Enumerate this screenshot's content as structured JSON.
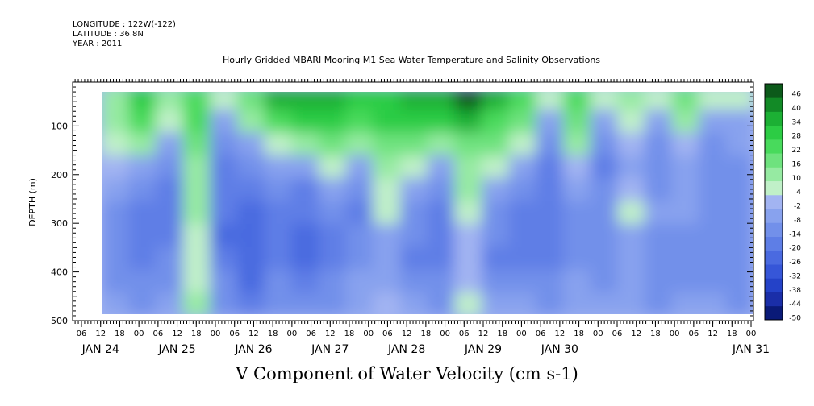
{
  "header": {
    "longitude": "LONGITUDE : 122W(-122)",
    "latitude": "LATITUDE : 36.8N",
    "year": "YEAR : 2011"
  },
  "chart_data": {
    "type": "heatmap",
    "title": "Hourly Gridded MBARI Mooring M1 Sea Water Temperature and Salinity Observations",
    "bottom_label": "V Component of Water Velocity (cm s-1)",
    "xlabel": "",
    "ylabel": "DEPTH (m)",
    "y_ticks": [
      100,
      200,
      300,
      400,
      500
    ],
    "ylim": [
      500,
      10
    ],
    "data_depth_range": [
      20,
      490
    ],
    "x_hour_ticks": [
      "06",
      "12",
      "18",
      "00",
      "06",
      "12",
      "18",
      "00",
      "06",
      "12",
      "18",
      "00",
      "06",
      "12",
      "18",
      "00",
      "06",
      "12",
      "18",
      "00",
      "06",
      "12",
      "18",
      "00",
      "06",
      "12",
      "18",
      "00",
      "06",
      "12",
      "18",
      "00",
      "06",
      "12",
      "18",
      "00"
    ],
    "x_day_labels": [
      "JAN 24",
      "JAN 25",
      "JAN 26",
      "JAN 27",
      "JAN 28",
      "JAN 29",
      "JAN 30",
      "JAN 31"
    ],
    "colorbar": {
      "levels": [
        -50,
        -44,
        -38,
        -32,
        -26,
        -20,
        -14,
        -8,
        -2,
        4,
        10,
        16,
        22,
        28,
        34,
        40,
        46
      ],
      "tick_labels": [
        "46",
        "40",
        "34",
        "28",
        "22",
        "16",
        "10",
        "4",
        "-2",
        "-8",
        "-14",
        "-20",
        "-26",
        "-32",
        "-38",
        "-44",
        "-50"
      ],
      "colors": [
        "#0a1a78",
        "#1a2ea8",
        "#2442c8",
        "#3656d8",
        "#4a6ae0",
        "#5e7ee6",
        "#7290ea",
        "#88a2ee",
        "#a2b4f2",
        "#c0f0c8",
        "#96eaa2",
        "#6ee27e",
        "#48da5c",
        "#2ccc44",
        "#1cb034",
        "#128a26",
        "#0c5a1a"
      ]
    },
    "field": {
      "rows": 10,
      "cols": 24,
      "v_values": [
        [
          12,
          28,
          14,
          26,
          4,
          18,
          34,
          38,
          34,
          30,
          32,
          34,
          36,
          46,
          34,
          22,
          6,
          26,
          4,
          12,
          6,
          20,
          6,
          4
        ],
        [
          10,
          22,
          6,
          24,
          -6,
          10,
          22,
          28,
          30,
          24,
          28,
          30,
          28,
          34,
          26,
          16,
          -6,
          20,
          -8,
          6,
          -8,
          14,
          -6,
          -4
        ],
        [
          6,
          10,
          -8,
          18,
          -14,
          -4,
          8,
          12,
          18,
          10,
          16,
          20,
          14,
          20,
          16,
          8,
          -12,
          10,
          -14,
          -2,
          -14,
          -2,
          -12,
          -8
        ],
        [
          -2,
          -8,
          -12,
          14,
          -16,
          -12,
          -4,
          -8,
          6,
          -8,
          10,
          8,
          -4,
          14,
          6,
          -6,
          -16,
          -2,
          -16,
          -4,
          -12,
          -4,
          -14,
          -10
        ],
        [
          -8,
          -14,
          -16,
          12,
          -18,
          -18,
          -12,
          -16,
          -4,
          -14,
          8,
          -4,
          -12,
          10,
          -6,
          -14,
          -18,
          -8,
          -14,
          -2,
          -10,
          -6,
          -14,
          -10
        ],
        [
          -12,
          -16,
          -18,
          10,
          -20,
          -22,
          -16,
          -20,
          -12,
          -16,
          4,
          -10,
          -16,
          6,
          -12,
          -16,
          -20,
          -12,
          -12,
          4,
          -8,
          -8,
          -14,
          -12
        ],
        [
          -14,
          -18,
          -16,
          8,
          -22,
          -24,
          -16,
          -22,
          -16,
          -14,
          -4,
          -14,
          -18,
          2,
          -14,
          -18,
          -20,
          -14,
          -10,
          -4,
          -12,
          -10,
          -12,
          -14
        ],
        [
          -12,
          -16,
          -14,
          6,
          -20,
          -26,
          -18,
          -24,
          -18,
          -12,
          -8,
          -16,
          -18,
          -2,
          -16,
          -16,
          -18,
          -12,
          -12,
          -8,
          -14,
          -12,
          -12,
          -14
        ],
        [
          -10,
          -14,
          -10,
          8,
          -14,
          -22,
          -14,
          -18,
          -14,
          -8,
          -6,
          -12,
          -14,
          2,
          -12,
          -10,
          -14,
          -8,
          -10,
          -8,
          -12,
          -10,
          -10,
          -12
        ],
        [
          -8,
          -10,
          -6,
          10,
          -10,
          -16,
          -10,
          -12,
          -10,
          -4,
          -2,
          -8,
          -10,
          4,
          -8,
          -6,
          -10,
          -6,
          -8,
          -6,
          -10,
          -8,
          -8,
          -10
        ]
      ]
    }
  }
}
